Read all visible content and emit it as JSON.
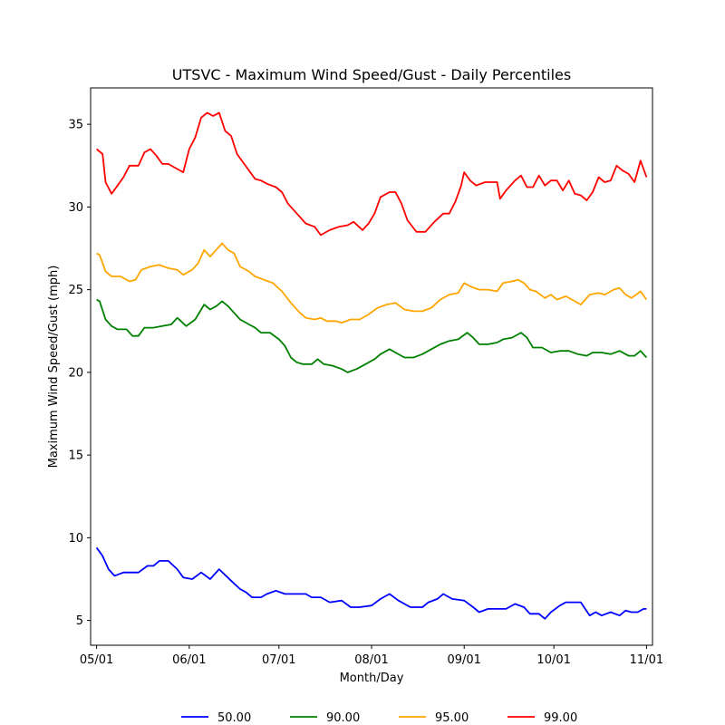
{
  "chart_data": {
    "type": "line",
    "title": "UTSVC - Maximum Wind Speed/Gust - Daily Percentiles",
    "xlabel": "Month/Day",
    "ylabel": "Maximum Wind Speed/Gust (mph)",
    "xlim": [
      "04-29",
      "11-03"
    ],
    "ylim": [
      3.5,
      37.2
    ],
    "x_ticks": [
      "05/01",
      "06/01",
      "07/01",
      "08/01",
      "09/01",
      "10/01",
      "11/01"
    ],
    "y_ticks": [
      5,
      10,
      15,
      20,
      25,
      30,
      35
    ],
    "grid": false,
    "legend_position": "bottom-center",
    "series": [
      {
        "name": "50.00",
        "color": "#0000ff",
        "points": [
          [
            "05-01",
            9.4
          ],
          [
            "05-03",
            8.9
          ],
          [
            "05-05",
            8.1
          ],
          [
            "05-07",
            7.7
          ],
          [
            "05-10",
            7.9
          ],
          [
            "05-15",
            7.9
          ],
          [
            "05-18",
            8.3
          ],
          [
            "05-20",
            8.3
          ],
          [
            "05-22",
            8.6
          ],
          [
            "05-25",
            8.6
          ],
          [
            "05-28",
            8.1
          ],
          [
            "05-30",
            7.6
          ],
          [
            "06-02",
            7.5
          ],
          [
            "06-05",
            7.9
          ],
          [
            "06-08",
            7.5
          ],
          [
            "06-11",
            8.1
          ],
          [
            "06-15",
            7.4
          ],
          [
            "06-18",
            6.9
          ],
          [
            "06-20",
            6.7
          ],
          [
            "06-22",
            6.4
          ],
          [
            "06-25",
            6.4
          ],
          [
            "06-27",
            6.6
          ],
          [
            "06-30",
            6.8
          ],
          [
            "07-03",
            6.6
          ],
          [
            "07-10",
            6.6
          ],
          [
            "07-12",
            6.4
          ],
          [
            "07-15",
            6.4
          ],
          [
            "07-18",
            6.1
          ],
          [
            "07-22",
            6.2
          ],
          [
            "07-25",
            5.8
          ],
          [
            "07-28",
            5.8
          ],
          [
            "08-01",
            5.9
          ],
          [
            "08-04",
            6.3
          ],
          [
            "08-07",
            6.6
          ],
          [
            "08-10",
            6.2
          ],
          [
            "08-14",
            5.8
          ],
          [
            "08-18",
            5.8
          ],
          [
            "08-20",
            6.1
          ],
          [
            "08-23",
            6.3
          ],
          [
            "08-25",
            6.6
          ],
          [
            "08-28",
            6.3
          ],
          [
            "09-01",
            6.2
          ],
          [
            "09-04",
            5.8
          ],
          [
            "09-06",
            5.5
          ],
          [
            "09-09",
            5.7
          ],
          [
            "09-15",
            5.7
          ],
          [
            "09-18",
            6.0
          ],
          [
            "09-21",
            5.8
          ],
          [
            "09-23",
            5.4
          ],
          [
            "09-26",
            5.4
          ],
          [
            "09-28",
            5.1
          ],
          [
            "09-30",
            5.5
          ],
          [
            "10-03",
            5.9
          ],
          [
            "10-05",
            6.1
          ],
          [
            "10-10",
            6.1
          ],
          [
            "10-13",
            5.3
          ],
          [
            "10-15",
            5.5
          ],
          [
            "10-17",
            5.3
          ],
          [
            "10-20",
            5.5
          ],
          [
            "10-23",
            5.3
          ],
          [
            "10-25",
            5.6
          ],
          [
            "10-27",
            5.5
          ],
          [
            "10-29",
            5.5
          ],
          [
            "10-31",
            5.7
          ],
          [
            "11-01",
            5.7
          ]
        ]
      },
      {
        "name": "90.00",
        "color": "#008000",
        "points": [
          [
            "05-01",
            24.4
          ],
          [
            "05-02",
            24.3
          ],
          [
            "05-04",
            23.2
          ],
          [
            "05-06",
            22.8
          ],
          [
            "05-08",
            22.6
          ],
          [
            "05-11",
            22.6
          ],
          [
            "05-13",
            22.2
          ],
          [
            "05-15",
            22.2
          ],
          [
            "05-17",
            22.7
          ],
          [
            "05-20",
            22.7
          ],
          [
            "05-23",
            22.8
          ],
          [
            "05-26",
            22.9
          ],
          [
            "05-28",
            23.3
          ],
          [
            "05-31",
            22.8
          ],
          [
            "06-03",
            23.2
          ],
          [
            "06-06",
            24.1
          ],
          [
            "06-08",
            23.8
          ],
          [
            "06-10",
            24.0
          ],
          [
            "06-12",
            24.3
          ],
          [
            "06-14",
            24.0
          ],
          [
            "06-16",
            23.6
          ],
          [
            "06-18",
            23.2
          ],
          [
            "06-21",
            22.9
          ],
          [
            "06-23",
            22.7
          ],
          [
            "06-25",
            22.4
          ],
          [
            "06-28",
            22.4
          ],
          [
            "07-01",
            22.0
          ],
          [
            "07-03",
            21.6
          ],
          [
            "07-05",
            20.9
          ],
          [
            "07-07",
            20.6
          ],
          [
            "07-09",
            20.5
          ],
          [
            "07-12",
            20.5
          ],
          [
            "07-14",
            20.8
          ],
          [
            "07-16",
            20.5
          ],
          [
            "07-19",
            20.4
          ],
          [
            "07-22",
            20.2
          ],
          [
            "07-24",
            20.0
          ],
          [
            "07-27",
            20.2
          ],
          [
            "07-30",
            20.5
          ],
          [
            "08-02",
            20.8
          ],
          [
            "08-04",
            21.1
          ],
          [
            "08-07",
            21.4
          ],
          [
            "08-09",
            21.2
          ],
          [
            "08-12",
            20.9
          ],
          [
            "08-15",
            20.9
          ],
          [
            "08-18",
            21.1
          ],
          [
            "08-21",
            21.4
          ],
          [
            "08-24",
            21.7
          ],
          [
            "08-27",
            21.9
          ],
          [
            "08-30",
            22.0
          ],
          [
            "09-02",
            22.4
          ],
          [
            "09-04",
            22.1
          ],
          [
            "09-06",
            21.7
          ],
          [
            "09-09",
            21.7
          ],
          [
            "09-12",
            21.8
          ],
          [
            "09-14",
            22.0
          ],
          [
            "09-17",
            22.1
          ],
          [
            "09-20",
            22.4
          ],
          [
            "09-22",
            22.1
          ],
          [
            "09-24",
            21.5
          ],
          [
            "09-27",
            21.5
          ],
          [
            "09-30",
            21.2
          ],
          [
            "10-03",
            21.3
          ],
          [
            "10-06",
            21.3
          ],
          [
            "10-09",
            21.1
          ],
          [
            "10-12",
            21.0
          ],
          [
            "10-14",
            21.2
          ],
          [
            "10-17",
            21.2
          ],
          [
            "10-20",
            21.1
          ],
          [
            "10-23",
            21.3
          ],
          [
            "10-26",
            21.0
          ],
          [
            "10-28",
            21.0
          ],
          [
            "10-30",
            21.3
          ],
          [
            "11-01",
            20.9
          ]
        ]
      },
      {
        "name": "95.00",
        "color": "#ffa500",
        "points": [
          [
            "05-01",
            27.2
          ],
          [
            "05-02",
            27.1
          ],
          [
            "05-04",
            26.1
          ],
          [
            "05-06",
            25.8
          ],
          [
            "05-09",
            25.8
          ],
          [
            "05-12",
            25.5
          ],
          [
            "05-14",
            25.6
          ],
          [
            "05-16",
            26.2
          ],
          [
            "05-19",
            26.4
          ],
          [
            "05-22",
            26.5
          ],
          [
            "05-25",
            26.3
          ],
          [
            "05-28",
            26.2
          ],
          [
            "05-30",
            25.9
          ],
          [
            "06-02",
            26.2
          ],
          [
            "06-04",
            26.6
          ],
          [
            "06-06",
            27.4
          ],
          [
            "06-08",
            27.0
          ],
          [
            "06-10",
            27.4
          ],
          [
            "06-12",
            27.8
          ],
          [
            "06-14",
            27.4
          ],
          [
            "06-16",
            27.2
          ],
          [
            "06-18",
            26.4
          ],
          [
            "06-21",
            26.1
          ],
          [
            "06-23",
            25.8
          ],
          [
            "06-26",
            25.6
          ],
          [
            "06-29",
            25.4
          ],
          [
            "07-02",
            24.9
          ],
          [
            "07-05",
            24.2
          ],
          [
            "07-08",
            23.6
          ],
          [
            "07-10",
            23.3
          ],
          [
            "07-13",
            23.2
          ],
          [
            "07-15",
            23.3
          ],
          [
            "07-17",
            23.1
          ],
          [
            "07-20",
            23.1
          ],
          [
            "07-22",
            23.0
          ],
          [
            "07-25",
            23.2
          ],
          [
            "07-28",
            23.2
          ],
          [
            "07-31",
            23.5
          ],
          [
            "08-03",
            23.9
          ],
          [
            "08-06",
            24.1
          ],
          [
            "08-09",
            24.2
          ],
          [
            "08-12",
            23.8
          ],
          [
            "08-15",
            23.7
          ],
          [
            "08-18",
            23.7
          ],
          [
            "08-21",
            23.9
          ],
          [
            "08-24",
            24.4
          ],
          [
            "08-27",
            24.7
          ],
          [
            "08-30",
            24.8
          ],
          [
            "09-01",
            25.4
          ],
          [
            "09-03",
            25.2
          ],
          [
            "09-06",
            25.0
          ],
          [
            "09-09",
            25.0
          ],
          [
            "09-12",
            24.9
          ],
          [
            "09-14",
            25.4
          ],
          [
            "09-17",
            25.5
          ],
          [
            "09-19",
            25.6
          ],
          [
            "09-21",
            25.4
          ],
          [
            "09-23",
            25.0
          ],
          [
            "09-25",
            24.9
          ],
          [
            "09-28",
            24.5
          ],
          [
            "09-30",
            24.7
          ],
          [
            "10-02",
            24.4
          ],
          [
            "10-05",
            24.6
          ],
          [
            "10-08",
            24.3
          ],
          [
            "10-10",
            24.1
          ],
          [
            "10-13",
            24.7
          ],
          [
            "10-16",
            24.8
          ],
          [
            "10-18",
            24.7
          ],
          [
            "10-21",
            25.0
          ],
          [
            "10-23",
            25.1
          ],
          [
            "10-25",
            24.7
          ],
          [
            "10-27",
            24.5
          ],
          [
            "10-30",
            24.9
          ],
          [
            "11-01",
            24.4
          ]
        ]
      },
      {
        "name": "99.00",
        "color": "#ff0000",
        "points": [
          [
            "05-01",
            33.5
          ],
          [
            "05-03",
            33.2
          ],
          [
            "05-04",
            31.5
          ],
          [
            "05-06",
            30.8
          ],
          [
            "05-08",
            31.3
          ],
          [
            "05-10",
            31.8
          ],
          [
            "05-12",
            32.5
          ],
          [
            "05-15",
            32.5
          ],
          [
            "05-17",
            33.3
          ],
          [
            "05-19",
            33.5
          ],
          [
            "05-21",
            33.1
          ],
          [
            "05-23",
            32.6
          ],
          [
            "05-25",
            32.6
          ],
          [
            "05-27",
            32.4
          ],
          [
            "05-30",
            32.1
          ],
          [
            "06-01",
            33.5
          ],
          [
            "06-03",
            34.2
          ],
          [
            "06-05",
            35.4
          ],
          [
            "06-07",
            35.7
          ],
          [
            "06-09",
            35.5
          ],
          [
            "06-11",
            35.7
          ],
          [
            "06-13",
            34.6
          ],
          [
            "06-15",
            34.3
          ],
          [
            "06-17",
            33.2
          ],
          [
            "06-19",
            32.7
          ],
          [
            "06-21",
            32.2
          ],
          [
            "06-23",
            31.7
          ],
          [
            "06-25",
            31.6
          ],
          [
            "06-27",
            31.4
          ],
          [
            "06-30",
            31.2
          ],
          [
            "07-02",
            30.9
          ],
          [
            "07-04",
            30.2
          ],
          [
            "07-07",
            29.6
          ],
          [
            "07-10",
            29.0
          ],
          [
            "07-13",
            28.8
          ],
          [
            "07-15",
            28.3
          ],
          [
            "07-18",
            28.6
          ],
          [
            "07-21",
            28.8
          ],
          [
            "07-24",
            28.9
          ],
          [
            "07-26",
            29.1
          ],
          [
            "07-29",
            28.6
          ],
          [
            "07-31",
            29.0
          ],
          [
            "08-02",
            29.6
          ],
          [
            "08-04",
            30.6
          ],
          [
            "08-07",
            30.9
          ],
          [
            "08-09",
            30.9
          ],
          [
            "08-11",
            30.2
          ],
          [
            "08-13",
            29.2
          ],
          [
            "08-16",
            28.5
          ],
          [
            "08-19",
            28.5
          ],
          [
            "08-22",
            29.1
          ],
          [
            "08-25",
            29.6
          ],
          [
            "08-27",
            29.6
          ],
          [
            "08-29",
            30.3
          ],
          [
            "08-31",
            31.3
          ],
          [
            "09-01",
            32.1
          ],
          [
            "09-03",
            31.6
          ],
          [
            "09-05",
            31.3
          ],
          [
            "09-08",
            31.5
          ],
          [
            "09-10",
            31.5
          ],
          [
            "09-12",
            31.5
          ],
          [
            "09-13",
            30.5
          ],
          [
            "09-15",
            31.0
          ],
          [
            "09-18",
            31.6
          ],
          [
            "09-20",
            31.9
          ],
          [
            "09-22",
            31.2
          ],
          [
            "09-24",
            31.2
          ],
          [
            "09-26",
            31.9
          ],
          [
            "09-28",
            31.3
          ],
          [
            "09-30",
            31.6
          ],
          [
            "10-02",
            31.6
          ],
          [
            "10-04",
            31.0
          ],
          [
            "10-06",
            31.6
          ],
          [
            "10-08",
            30.8
          ],
          [
            "10-10",
            30.7
          ],
          [
            "10-12",
            30.4
          ],
          [
            "10-14",
            30.9
          ],
          [
            "10-16",
            31.8
          ],
          [
            "10-18",
            31.5
          ],
          [
            "10-20",
            31.6
          ],
          [
            "10-22",
            32.5
          ],
          [
            "10-24",
            32.2
          ],
          [
            "10-26",
            32.0
          ],
          [
            "10-28",
            31.5
          ],
          [
            "10-30",
            32.8
          ],
          [
            "11-01",
            31.8
          ]
        ]
      }
    ]
  }
}
